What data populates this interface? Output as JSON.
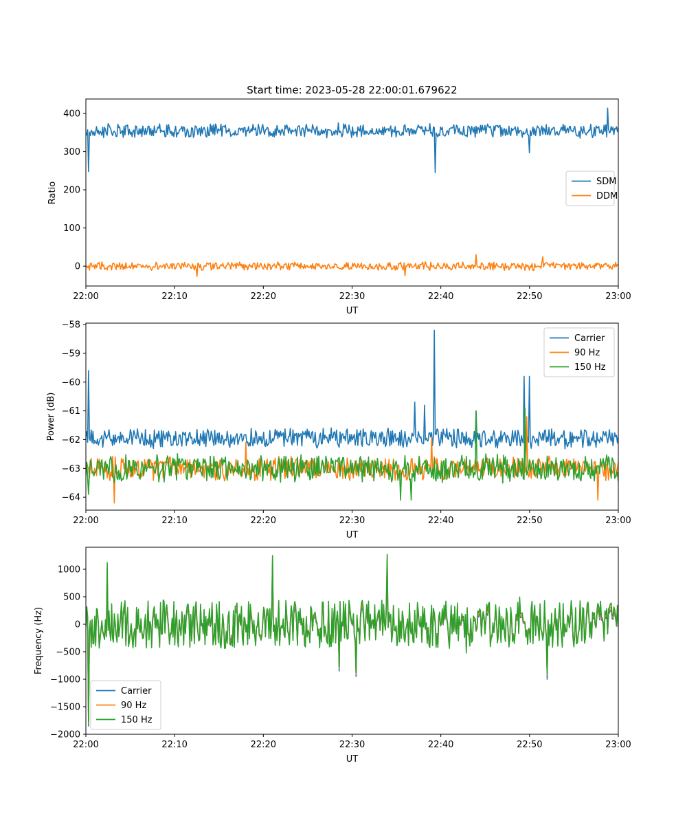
{
  "figure": {
    "title": "Start time: 2023-05-28 22:00:01.679622"
  },
  "colors": {
    "blue": "#1f77b4",
    "orange": "#ff7f0e",
    "green": "#2ca02c",
    "legend_border": "#cccccc"
  },
  "chart_data": [
    {
      "type": "line",
      "title": "Start time: 2023-05-28 22:00:01.679622",
      "xlabel": "UT",
      "ylabel": "Ratio",
      "xlim": [
        "22:00",
        "23:00"
      ],
      "xticks": [
        "22:00",
        "22:10",
        "22:20",
        "22:30",
        "22:40",
        "22:50",
        "23:00"
      ],
      "ylim": [
        -52,
        438
      ],
      "yticks": [
        0,
        100,
        200,
        300,
        400
      ],
      "grid": false,
      "legend": "center-right",
      "series": [
        {
          "name": "SDM",
          "color": "#1f77b4",
          "baseline": 355,
          "noise": 16,
          "spikes": [
            [
              0.3,
              248
            ],
            [
              39.4,
              245
            ],
            [
              50.0,
              297
            ],
            [
              58.8,
              414
            ]
          ]
        },
        {
          "name": "DDM",
          "color": "#ff7f0e",
          "baseline": 0,
          "noise": 9,
          "spikes": [
            [
              12.5,
              -27
            ],
            [
              44.0,
              30
            ],
            [
              51.5,
              25
            ],
            [
              36.0,
              -25
            ]
          ]
        }
      ]
    },
    {
      "type": "line",
      "xlabel": "UT",
      "ylabel": "Power (dB)",
      "xlim": [
        "22:00",
        "23:00"
      ],
      "xticks": [
        "22:00",
        "22:10",
        "22:20",
        "22:30",
        "22:40",
        "22:50",
        "23:00"
      ],
      "ylim": [
        -64.45,
        -57.95
      ],
      "yticks": [
        -64,
        -63,
        -62,
        -61,
        -60,
        -59,
        -58
      ],
      "grid": false,
      "legend": "top-right",
      "series": [
        {
          "name": "Carrier",
          "color": "#1f77b4",
          "baseline": -61.95,
          "noise": 0.3,
          "spikes": [
            [
              0.3,
              -59.6
            ],
            [
              37.1,
              -60.7
            ],
            [
              38.2,
              -60.8
            ],
            [
              39.3,
              -58.2
            ],
            [
              49.4,
              -59.8
            ],
            [
              50.0,
              -59.8
            ],
            [
              44.0,
              -61.0
            ]
          ]
        },
        {
          "name": "90 Hz",
          "color": "#ff7f0e",
          "baseline": -63.0,
          "noise": 0.35,
          "spikes": [
            [
              3.2,
              -64.2
            ],
            [
              18.0,
              -62.1
            ],
            [
              39.0,
              -61.9
            ],
            [
              49.7,
              -61.2
            ],
            [
              57.7,
              -64.1
            ]
          ]
        },
        {
          "name": "150 Hz",
          "color": "#2ca02c",
          "baseline": -63.0,
          "noise": 0.4,
          "spikes": [
            [
              0.3,
              -63.9
            ],
            [
              35.5,
              -64.1
            ],
            [
              44.0,
              -61.0
            ],
            [
              49.5,
              -60.9
            ],
            [
              36.7,
              -64.1
            ]
          ]
        }
      ]
    },
    {
      "type": "line",
      "xlabel": "UT",
      "ylabel": "Frequency (Hz)",
      "xlim": [
        "22:00",
        "23:00"
      ],
      "xticks": [
        "22:00",
        "22:10",
        "22:20",
        "22:30",
        "22:40",
        "22:50",
        "23:00"
      ],
      "ylim": [
        -2000,
        1400
      ],
      "yticks": [
        -2000,
        -1500,
        -1000,
        -500,
        0,
        500,
        1000
      ],
      "grid": false,
      "legend": "bottom-left",
      "series": [
        {
          "name": "Carrier",
          "color": "#1f77b4",
          "baseline": -20,
          "noise": 360,
          "scale": 0.82,
          "spikes": [
            [
              0.3,
              -1850
            ],
            [
              2.4,
              900
            ],
            [
              21.0,
              1050
            ],
            [
              28.5,
              -850
            ],
            [
              30.5,
              -950
            ],
            [
              34.0,
              1050
            ],
            [
              52.0,
              -1000
            ]
          ]
        },
        {
          "name": "90 Hz",
          "color": "#ff7f0e",
          "baseline": -10,
          "noise": 380,
          "scale": 0.9,
          "spikes": [
            [
              0.3,
              -1800
            ],
            [
              2.4,
              1000
            ],
            [
              21.0,
              1150
            ],
            [
              28.5,
              -800
            ],
            [
              30.5,
              -900
            ],
            [
              34.0,
              1150
            ],
            [
              52.0,
              -920
            ]
          ]
        },
        {
          "name": "150 Hz",
          "color": "#2ca02c",
          "baseline": 0,
          "noise": 400,
          "scale": 1.0,
          "spikes": [
            [
              0.3,
              -1780
            ],
            [
              2.4,
              1120
            ],
            [
              21.0,
              1250
            ],
            [
              28.5,
              -780
            ],
            [
              30.5,
              -880
            ],
            [
              34.0,
              1270
            ],
            [
              52.0,
              -900
            ]
          ]
        }
      ]
    }
  ]
}
